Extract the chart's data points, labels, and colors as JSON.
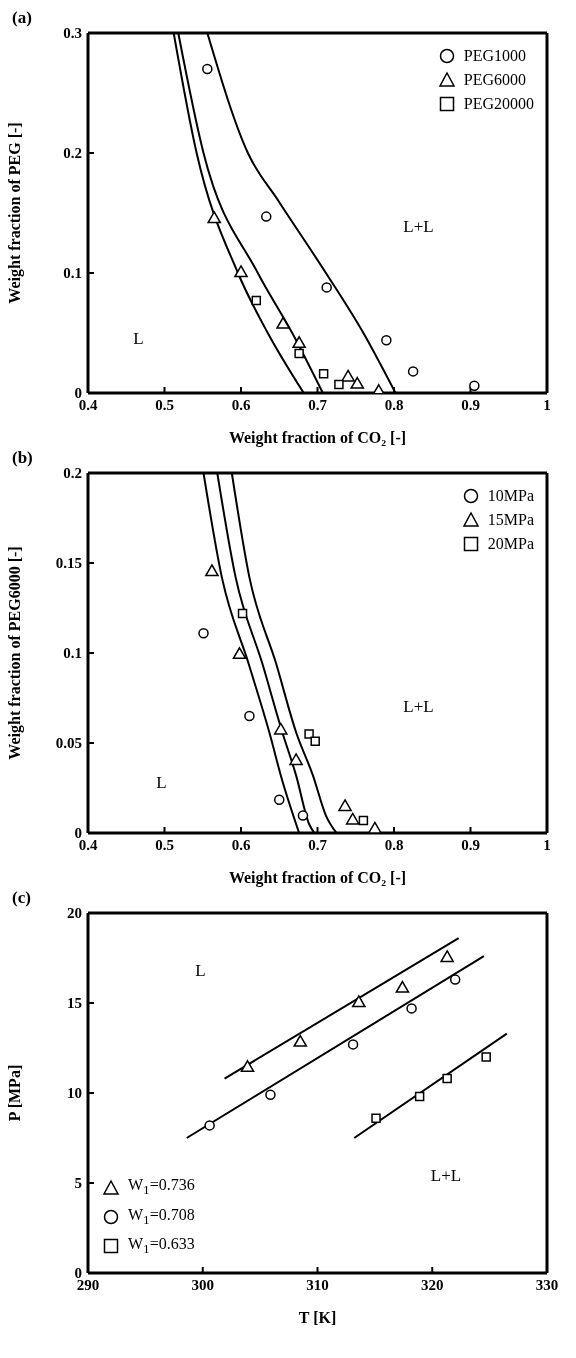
{
  "chart_data": [
    {
      "type": "scatter",
      "title": "(a)",
      "xlabel": "Weight fraction of CO₂ [-]",
      "ylabel": "Weight fraction of PEG [-]",
      "xlim": [
        0.4,
        1
      ],
      "xticks": [
        0.4,
        0.5,
        0.6,
        0.7,
        0.8,
        0.9,
        1
      ],
      "ylim": [
        0,
        0.3
      ],
      "yticks": [
        0,
        0.1,
        0.2,
        0.3
      ],
      "legend": "top right",
      "annotations": [
        "L",
        "L+L"
      ],
      "series": [
        {
          "name": "PEG1000",
          "marker": "circle",
          "color": "#000000",
          "x": [
            0.556,
            0.633,
            0.712,
            0.79,
            0.825,
            0.905
          ],
          "values": [
            0.27,
            0.147,
            0.088,
            0.044,
            0.018,
            0.006
          ]
        },
        {
          "name": "PEG6000",
          "marker": "triangle",
          "color": "#000000",
          "x": [
            0.565,
            0.6,
            0.655,
            0.676,
            0.74,
            0.752,
            0.78
          ],
          "values": [
            0.145,
            0.1,
            0.057,
            0.041,
            0.013,
            0.007,
            0.001
          ]
        },
        {
          "name": "PEG20000",
          "marker": "square",
          "color": "#000000",
          "x": [
            0.62,
            0.676,
            0.708,
            0.728
          ],
          "values": [
            0.077,
            0.033,
            0.016,
            0.007
          ]
        },
        {
          "type": "line",
          "color": "#000000",
          "x": [
            0.512,
            0.542,
            0.596,
            0.635,
            0.682
          ],
          "values": [
            0.3,
            0.2,
            0.1,
            0.05,
            0
          ]
        },
        {
          "type": "line",
          "color": "#000000",
          "x": [
            0.518,
            0.551,
            0.622,
            0.667,
            0.707
          ],
          "values": [
            0.3,
            0.2,
            0.1,
            0.05,
            0
          ]
        },
        {
          "type": "line",
          "color": "#000000",
          "x": [
            0.556,
            0.609,
            0.649,
            0.711,
            0.76,
            0.802
          ],
          "values": [
            0.3,
            0.2,
            0.16,
            0.1,
            0.05,
            0
          ]
        }
      ]
    },
    {
      "type": "scatter",
      "title": "(b)",
      "xlabel": "Weight fraction of CO₂ [-]",
      "ylabel": "Weight fraction of PEG6000 [-]",
      "xlim": [
        0.4,
        1
      ],
      "xticks": [
        0.4,
        0.5,
        0.6,
        0.7,
        0.8,
        0.9,
        1
      ],
      "ylim": [
        0,
        0.2
      ],
      "yticks": [
        0,
        0.05,
        0.1,
        0.15,
        0.2
      ],
      "legend": "top right",
      "annotations": [
        "L",
        "L+L"
      ],
      "series": [
        {
          "name": "10MPa",
          "marker": "circle",
          "color": "#000000",
          "x": [
            0.551,
            0.611,
            0.65,
            0.681
          ],
          "values": [
            0.111,
            0.065,
            0.0185,
            0.0097
          ]
        },
        {
          "name": "15MPa",
          "marker": "triangle",
          "color": "#000000",
          "x": [
            0.562,
            0.598,
            0.652,
            0.672,
            0.736,
            0.746,
            0.775
          ],
          "values": [
            0.145,
            0.099,
            0.057,
            0.04,
            0.0145,
            0.007,
            0.002
          ]
        },
        {
          "name": "20MPa",
          "marker": "square",
          "color": "#000000",
          "x": [
            0.602,
            0.689,
            0.697,
            0.76
          ],
          "values": [
            0.122,
            0.055,
            0.051,
            0.007
          ]
        },
        {
          "type": "line",
          "color": "#000000",
          "x": [
            0.551,
            0.575,
            0.61,
            0.637,
            0.654,
            0.672,
            0.676
          ],
          "values": [
            0.2,
            0.142,
            0.094,
            0.056,
            0.029,
            0.005,
            0
          ]
        },
        {
          "type": "line",
          "color": "#000000",
          "x": [
            0.569,
            0.593,
            0.628,
            0.654,
            0.672,
            0.689,
            0.696
          ],
          "values": [
            0.2,
            0.142,
            0.094,
            0.056,
            0.032,
            0.005,
            0
          ]
        },
        {
          "type": "line",
          "color": "#000000",
          "x": [
            0.588,
            0.611,
            0.646,
            0.672,
            0.694,
            0.711,
            0.725
          ],
          "values": [
            0.2,
            0.142,
            0.094,
            0.056,
            0.032,
            0.0097,
            0
          ]
        }
      ]
    },
    {
      "type": "scatter",
      "title": "(c)",
      "xlabel": "T [K]",
      "ylabel": "P [MPa]",
      "xlim": [
        290,
        330
      ],
      "xticks": [
        290,
        300,
        310,
        320,
        330
      ],
      "ylim": [
        0,
        20
      ],
      "yticks": [
        0,
        5,
        10,
        15,
        20
      ],
      "legend": "bottom left",
      "annotations": [
        "L",
        "L+L"
      ],
      "series": [
        {
          "name": "W$_{1}$=0.736",
          "marker": "triangle",
          "color": "#000000",
          "x": [
            303.9,
            308.5,
            313.6,
            317.4,
            321.3
          ],
          "values": [
            11.4,
            12.8,
            15.0,
            15.8,
            17.5
          ]
        },
        {
          "name": "W$_{1}$=0.708",
          "marker": "circle",
          "color": "#000000",
          "x": [
            300.6,
            305.9,
            313.1,
            318.2,
            322.0
          ],
          "values": [
            8.2,
            9.9,
            12.7,
            14.7,
            16.3
          ]
        },
        {
          "name": "W$_{1}$=0.633",
          "marker": "square",
          "color": "#000000",
          "x": [
            315.1,
            318.9,
            321.3,
            324.7
          ],
          "values": [
            8.6,
            9.8,
            10.8,
            12.0
          ]
        },
        {
          "type": "line",
          "color": "#000000",
          "x": [
            301.9,
            322.3
          ],
          "values": [
            10.8,
            18.6
          ]
        },
        {
          "type": "line",
          "color": "#000000",
          "x": [
            298.6,
            324.5
          ],
          "values": [
            7.5,
            17.6
          ]
        },
        {
          "type": "line",
          "color": "#000000",
          "x": [
            313.2,
            326.5
          ],
          "values": [
            7.5,
            13.3
          ]
        }
      ]
    }
  ]
}
